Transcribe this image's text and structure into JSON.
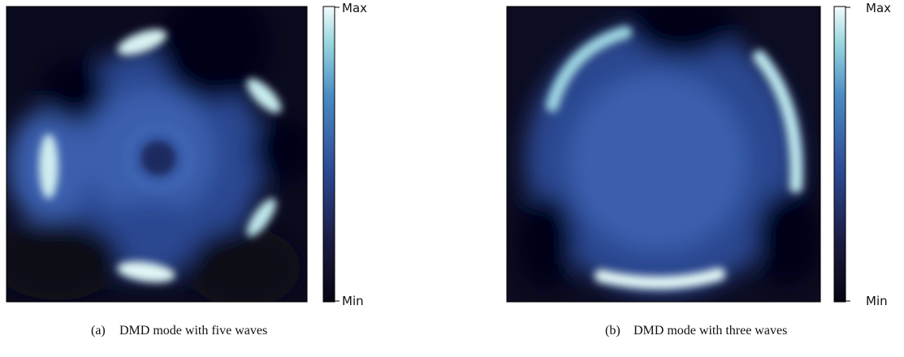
{
  "panels": [
    {
      "label": "(a)",
      "caption": "DMD mode with five waves",
      "colorbar": {
        "max": "Max",
        "min": "Min"
      }
    },
    {
      "label": "(b)",
      "caption": "DMD mode with three waves",
      "colorbar": {
        "max": "Max",
        "min": "Min"
      }
    }
  ]
}
